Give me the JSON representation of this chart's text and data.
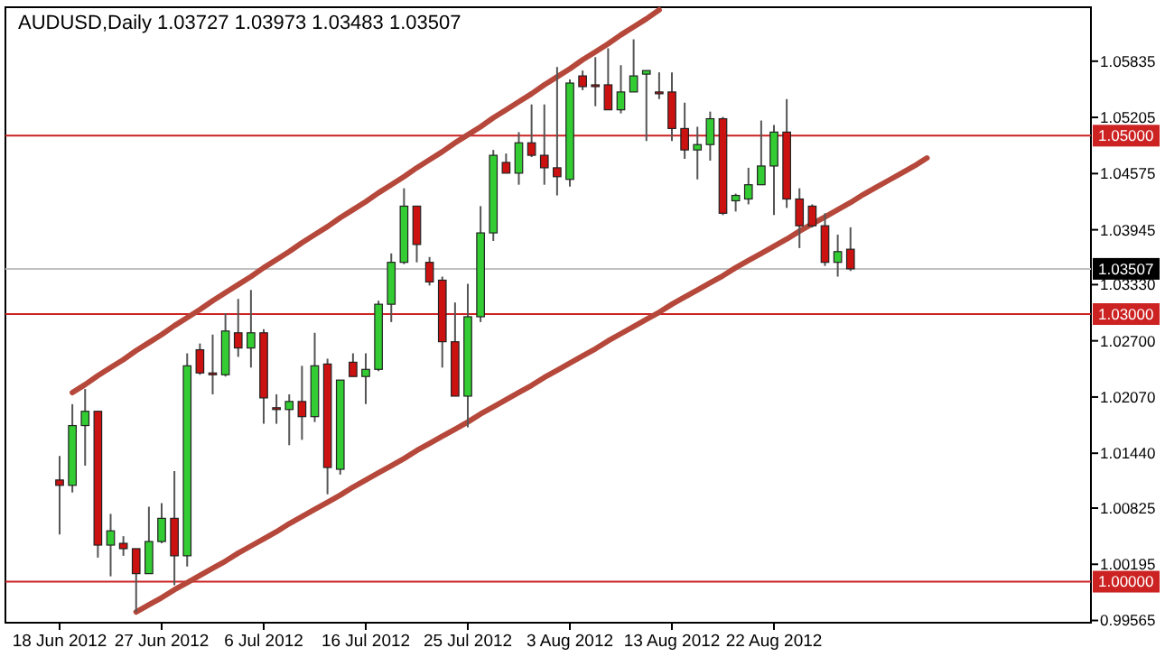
{
  "chart_data": {
    "type": "candlestick",
    "title": "AUDUSD,Daily  1.03727 1.03973 1.03483 1.03507",
    "categories": [
      "18 Jun 2012",
      null,
      null,
      null,
      null,
      null,
      null,
      null,
      "27 Jun 2012",
      null,
      null,
      null,
      null,
      null,
      null,
      null,
      "6 Jul 2012",
      null,
      null,
      null,
      null,
      null,
      null,
      null,
      "16 Jul 2012",
      null,
      null,
      null,
      null,
      null,
      null,
      null,
      "25 Jul 2012",
      null,
      null,
      null,
      null,
      null,
      null,
      null,
      "3 Aug 2012",
      null,
      null,
      null,
      null,
      null,
      null,
      null,
      "13 Aug 2012",
      null,
      null,
      null,
      null,
      null,
      null,
      null,
      "22 Aug 2012",
      null,
      null,
      null,
      null,
      null,
      null,
      null,
      null,
      null,
      null,
      null,
      null,
      null,
      null,
      null,
      null,
      null,
      null,
      null,
      null,
      null,
      null,
      null,
      null
    ],
    "ohlc": [
      [
        1.0114,
        1.0141,
        1.0053,
        1.0108
      ],
      [
        1.0108,
        1.0199,
        1.01,
        1.0175
      ],
      [
        1.0175,
        1.0216,
        1.013,
        1.0191
      ],
      [
        1.0191,
        1.0191,
        1.0027,
        1.0041
      ],
      [
        1.0041,
        1.0076,
        1.0006,
        1.0057
      ],
      [
        1.0043,
        1.0051,
        1.0029,
        1.0037
      ],
      [
        1.0037,
        1.0037,
        0.9966,
        1.0009
      ],
      [
        1.0009,
        1.0084,
        1.0009,
        1.0045
      ],
      [
        1.0045,
        1.0088,
        1.0043,
        1.0071
      ],
      [
        1.0071,
        1.0124,
        0.9996,
        1.0029
      ],
      [
        1.0029,
        1.0256,
        1.0017,
        1.0242
      ],
      [
        1.026,
        1.0267,
        1.0232,
        1.0234
      ],
      [
        1.0234,
        1.0277,
        1.021,
        1.0232
      ],
      [
        1.0232,
        1.0301,
        1.023,
        1.0281
      ],
      [
        1.0279,
        1.0317,
        1.0252,
        1.0262
      ],
      [
        1.0262,
        1.0327,
        1.024,
        1.0279
      ],
      [
        1.0279,
        1.0283,
        1.0177,
        1.0206
      ],
      [
        1.0195,
        1.021,
        1.0177,
        1.0193
      ],
      [
        1.0193,
        1.021,
        1.0153,
        1.0202
      ],
      [
        1.0202,
        1.0242,
        1.0159,
        1.0185
      ],
      [
        1.0185,
        1.0279,
        1.0179,
        1.0242
      ],
      [
        1.0244,
        1.025,
        1.0098,
        1.0128
      ],
      [
        1.0126,
        1.0226,
        1.012,
        1.0226
      ],
      [
        1.0246,
        1.0256,
        1.023,
        1.023
      ],
      [
        1.023,
        1.0256,
        1.0199,
        1.0238
      ],
      [
        1.0238,
        1.0315,
        1.0236,
        1.0311
      ],
      [
        1.0311,
        1.0368,
        1.0291,
        1.0358
      ],
      [
        1.0358,
        1.0441,
        1.0356,
        1.0421
      ],
      [
        1.0421,
        1.0421,
        1.0358,
        1.0378
      ],
      [
        1.0358,
        1.0364,
        1.0332,
        1.0336
      ],
      [
        1.0338,
        1.0342,
        1.024,
        1.0269
      ],
      [
        1.0269,
        1.0313,
        1.0208,
        1.0208
      ],
      [
        1.0208,
        1.0334,
        1.0173,
        1.0297
      ],
      [
        1.0297,
        1.0421,
        1.0291,
        1.0391
      ],
      [
        1.0391,
        1.0484,
        1.0382,
        1.0478
      ],
      [
        1.047,
        1.048,
        1.0458,
        1.0458
      ],
      [
        1.0458,
        1.0504,
        1.0445,
        1.0492
      ],
      [
        1.0492,
        1.0535,
        1.0476,
        1.0478
      ],
      [
        1.0478,
        1.0535,
        1.0445,
        1.0464
      ],
      [
        1.0464,
        1.0577,
        1.0433,
        1.0454
      ],
      [
        1.0451,
        1.0563,
        1.0443,
        1.0559
      ],
      [
        1.0567,
        1.0573,
        1.0551,
        1.0555
      ],
      [
        1.0557,
        1.0588,
        1.0533,
        1.0556
      ],
      [
        1.0557,
        1.0598,
        1.0529,
        1.0529
      ],
      [
        1.0529,
        1.0579,
        1.0525,
        1.0549
      ],
      [
        1.0549,
        1.0608,
        1.0549,
        1.0567
      ],
      [
        1.0569,
        1.0573,
        1.0494,
        1.0573
      ],
      [
        1.0549,
        1.0571,
        1.0541,
        1.0548
      ],
      [
        1.0549,
        1.0571,
        1.0494,
        1.0508
      ],
      [
        1.0508,
        1.0537,
        1.0474,
        1.0484
      ],
      [
        1.0484,
        1.051,
        1.0451,
        1.049
      ],
      [
        1.049,
        1.0527,
        1.0472,
        1.0519
      ],
      [
        1.0519,
        1.0521,
        1.0411,
        1.0413
      ],
      [
        1.0427,
        1.0435,
        1.0415,
        1.0433
      ],
      [
        1.0429,
        1.0464,
        1.0423,
        1.0445
      ],
      [
        1.0445,
        1.0517,
        1.0445,
        1.0466
      ],
      [
        1.0466,
        1.0512,
        1.0411,
        1.0504
      ],
      [
        1.0504,
        1.0541,
        1.0419,
        1.0429
      ],
      [
        1.0429,
        1.0441,
        1.0374,
        1.0399
      ],
      [
        1.0421,
        1.0423,
        1.0397,
        1.0399
      ],
      [
        1.0399,
        1.0413,
        1.0354,
        1.0358
      ],
      [
        1.0358,
        1.0389,
        1.0342,
        1.037
      ],
      [
        1.03727,
        1.03973,
        1.03483,
        1.03507
      ],
      null,
      null,
      null,
      null,
      null,
      null,
      null,
      null,
      null,
      null,
      null,
      null,
      null,
      null,
      null,
      null,
      null,
      null
    ],
    "colors": [
      "#cc1111",
      "#33cc33",
      "#33cc33",
      "#cc1111",
      "#33cc33",
      "#cc1111",
      "#cc1111",
      "#33cc33",
      "#33cc33",
      "#cc1111",
      "#33cc33",
      "#cc1111",
      "#cc1111",
      "#33cc33",
      "#cc1111",
      "#33cc33",
      "#cc1111",
      "#cc1111",
      "#33cc33",
      "#cc1111",
      "#33cc33",
      "#cc1111",
      "#33cc33",
      "#cc1111",
      "#33cc33",
      "#33cc33",
      "#33cc33",
      "#33cc33",
      "#cc1111",
      "#cc1111",
      "#cc1111",
      "#cc1111",
      "#33cc33",
      "#33cc33",
      "#33cc33",
      "#cc1111",
      "#33cc33",
      "#cc1111",
      "#cc1111",
      "#cc1111",
      "#33cc33",
      "#cc1111",
      "#cc1111",
      "#cc1111",
      "#33cc33",
      "#33cc33",
      "#33cc33",
      "#cc1111",
      "#cc1111",
      "#cc1111",
      "#33cc33",
      "#33cc33",
      "#cc1111",
      "#33cc33",
      "#33cc33",
      "#33cc33",
      "#33cc33",
      "#cc1111",
      "#cc1111",
      "#cc1111",
      "#cc1111",
      "#33cc33",
      "#cc1111",
      null,
      null,
      null,
      null,
      null,
      null,
      null,
      null,
      null,
      null,
      null,
      null,
      null,
      null,
      null,
      null,
      null,
      null
    ],
    "series": [
      {
        "type": "line",
        "color": "#b5483a",
        "values": [
          null,
          1.0212,
          1.0221,
          1.0231,
          1.024,
          1.0249,
          1.0259,
          1.0268,
          1.0277,
          1.0287,
          1.0296,
          1.0305,
          1.0315,
          1.0324,
          1.0333,
          1.0342,
          1.0352,
          1.0361,
          1.037,
          1.038,
          1.0389,
          1.0398,
          1.0408,
          1.0417,
          1.0426,
          1.0436,
          1.0445,
          1.0454,
          1.0464,
          1.0473,
          1.0482,
          1.0492,
          1.0501,
          1.051,
          1.052,
          1.0529,
          1.0538,
          1.0547,
          1.0557,
          1.0566,
          1.0575,
          1.0585,
          1.0594,
          1.0603,
          1.0613,
          1.0622,
          1.0631,
          1.0641,
          null,
          null,
          null,
          null,
          null,
          null,
          null,
          null,
          null,
          null,
          null,
          null,
          null,
          null,
          null,
          null,
          null,
          null,
          null,
          null,
          null,
          null,
          null,
          null,
          null,
          null,
          null,
          null,
          null,
          null,
          null,
          null,
          null
        ]
      },
      {
        "type": "line",
        "color": "#b5483a",
        "values": [
          null,
          null,
          null,
          null,
          null,
          null,
          0.9966,
          0.9974,
          0.9982,
          0.9991,
          0.9999,
          1.0007,
          1.0015,
          1.0023,
          1.0032,
          1.004,
          1.0048,
          1.0056,
          1.0065,
          1.0073,
          1.0081,
          1.0089,
          1.0097,
          1.0106,
          1.0114,
          1.0122,
          1.013,
          1.0138,
          1.0147,
          1.0155,
          1.0163,
          1.0171,
          1.0179,
          1.0188,
          1.0196,
          1.0204,
          1.0212,
          1.022,
          1.0229,
          1.0237,
          1.0245,
          1.0253,
          1.0261,
          1.027,
          1.0278,
          1.0286,
          1.0294,
          1.0302,
          1.0311,
          1.0319,
          1.0327,
          1.0335,
          1.0343,
          1.0352,
          1.036,
          1.0368,
          1.0376,
          1.0384,
          1.0393,
          1.0401,
          1.0409,
          1.0417,
          1.0425,
          1.0434,
          1.0442,
          1.045,
          1.0458,
          1.0466,
          1.0475,
          null,
          null,
          null,
          null,
          null,
          null,
          null,
          null,
          null,
          null,
          null,
          null
        ]
      }
    ],
    "ylim": [
      0.9954,
      1.0644
    ],
    "yticks": [
      1.05835,
      1.05205,
      {
        "value": 1.04575,
        "label": "1.04575"
      },
      1.03945,
      {
        "value": 1.0333,
        "label": "1.03330"
      },
      {
        "value": 1.027,
        "label": "1.02700"
      },
      {
        "value": 1.0207,
        "label": "1.02070"
      },
      {
        "value": 1.0144,
        "label": "1.01440"
      },
      1.00825,
      1.00195,
      0.99565
    ],
    "ref_lines": [
      {
        "axis": "y",
        "value": 1.05,
        "label": "1.05000",
        "color": "#cc2222"
      },
      {
        "axis": "y",
        "value": 1.03,
        "label": "1.03000",
        "color": "#cc2222"
      },
      {
        "axis": "y",
        "value": 1.0,
        "label": "1.00000",
        "color": "#cc2222"
      },
      {
        "axis": "y",
        "value": 1.03507,
        "label": "1.03507",
        "color": "#c0c0c0"
      }
    ]
  }
}
